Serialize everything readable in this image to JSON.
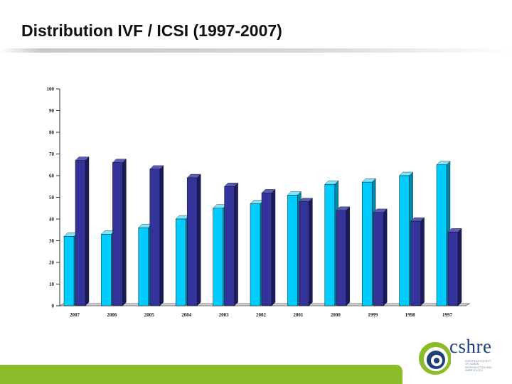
{
  "slide": {
    "title": "Distribution IVF / ICSI (1997-2007)"
  },
  "logo": {
    "wordmark": "cshre",
    "tagline": "EUROPEAN SOCIETY OF HUMAN REPRODUCTION AND EMBRYOLOGY"
  },
  "colors": {
    "ivf": "#00ccff",
    "icsi": "#333399",
    "footer": "#8cbc2a"
  },
  "chart_data": {
    "type": "bar",
    "title": "",
    "xlabel": "",
    "ylabel": "",
    "categories": [
      "2007",
      "2006",
      "2005",
      "2004",
      "2003",
      "2002",
      "2001",
      "2000",
      "1999",
      "1998",
      "1997"
    ],
    "series": [
      {
        "values": [
          32,
          33,
          36,
          40,
          45,
          47,
          51,
          56,
          57,
          60,
          65
        ]
      },
      {
        "values": [
          67,
          66,
          63,
          59,
          55,
          52,
          48,
          44,
          43,
          39,
          34
        ]
      }
    ],
    "yticks": [
      "100",
      "90",
      "80",
      "70",
      "60",
      "50",
      "40",
      "30",
      "20",
      "10",
      "0"
    ],
    "ylim": [
      0,
      100
    ],
    "grid": false,
    "legend": "none",
    "style": "3d"
  }
}
